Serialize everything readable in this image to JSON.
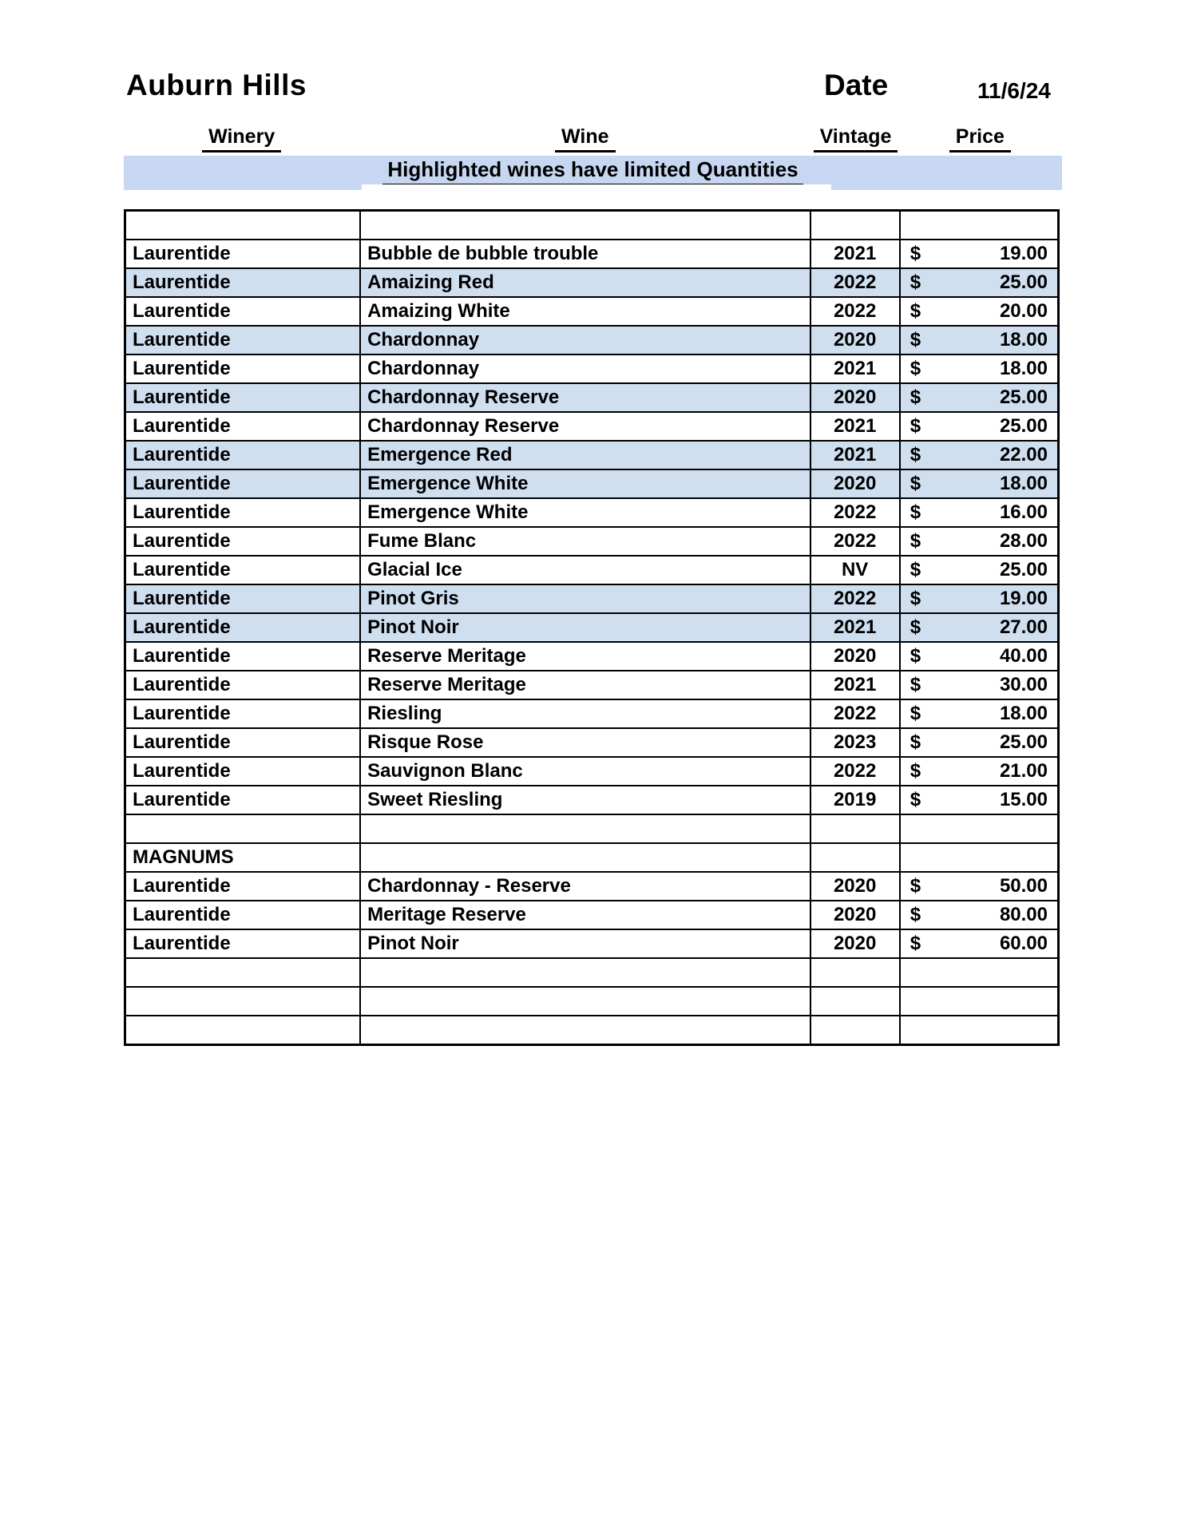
{
  "page": {
    "title": "Auburn Hills",
    "date_label": "Date",
    "date_value": "11/6/24"
  },
  "banner": {
    "text": "Highlighted wines have limited Quantities"
  },
  "colors": {
    "banner_background": "#c7d7f2",
    "row_highlight": "#cfdff0",
    "border": "#000000",
    "text": "#000000"
  },
  "table": {
    "columns": [
      "Winery",
      "Wine",
      "Vintage",
      "Price"
    ],
    "currency_symbol": "$",
    "rows": [
      {
        "winery": "",
        "wine": "",
        "vintage": "",
        "price": "",
        "highlighted": false
      },
      {
        "winery": "Laurentide",
        "wine": "Bubble de bubble trouble",
        "vintage": "2021",
        "price": "19.00",
        "highlighted": false
      },
      {
        "winery": "Laurentide",
        "wine": "Amaizing Red",
        "vintage": "2022",
        "price": "25.00",
        "highlighted": true
      },
      {
        "winery": "Laurentide",
        "wine": "Amaizing White",
        "vintage": "2022",
        "price": "20.00",
        "highlighted": false
      },
      {
        "winery": "Laurentide",
        "wine": "Chardonnay",
        "vintage": "2020",
        "price": "18.00",
        "highlighted": true
      },
      {
        "winery": "Laurentide",
        "wine": "Chardonnay",
        "vintage": "2021",
        "price": "18.00",
        "highlighted": false
      },
      {
        "winery": "Laurentide",
        "wine": "Chardonnay Reserve",
        "vintage": "2020",
        "price": "25.00",
        "highlighted": true
      },
      {
        "winery": "Laurentide",
        "wine": "Chardonnay Reserve",
        "vintage": "2021",
        "price": "25.00",
        "highlighted": false
      },
      {
        "winery": "Laurentide",
        "wine": "Emergence Red",
        "vintage": "2021",
        "price": "22.00",
        "highlighted": true
      },
      {
        "winery": "Laurentide",
        "wine": "Emergence White",
        "vintage": "2020",
        "price": "18.00",
        "highlighted": true
      },
      {
        "winery": "Laurentide",
        "wine": "Emergence White",
        "vintage": "2022",
        "price": "16.00",
        "highlighted": false
      },
      {
        "winery": "Laurentide",
        "wine": "Fume Blanc",
        "vintage": "2022",
        "price": "28.00",
        "highlighted": false
      },
      {
        "winery": "Laurentide",
        "wine": "Glacial Ice",
        "vintage": "NV",
        "price": "25.00",
        "highlighted": false
      },
      {
        "winery": "Laurentide",
        "wine": "Pinot Gris",
        "vintage": "2022",
        "price": "19.00",
        "highlighted": true
      },
      {
        "winery": "Laurentide",
        "wine": "Pinot Noir",
        "vintage": "2021",
        "price": "27.00",
        "highlighted": true
      },
      {
        "winery": "Laurentide",
        "wine": "Reserve Meritage",
        "vintage": "2020",
        "price": "40.00",
        "highlighted": false
      },
      {
        "winery": "Laurentide",
        "wine": "Reserve Meritage",
        "vintage": "2021",
        "price": "30.00",
        "highlighted": false
      },
      {
        "winery": "Laurentide",
        "wine": "Riesling",
        "vintage": "2022",
        "price": "18.00",
        "highlighted": false
      },
      {
        "winery": "Laurentide",
        "wine": "Risque Rose",
        "vintage": "2023",
        "price": "25.00",
        "highlighted": false
      },
      {
        "winery": "Laurentide",
        "wine": "Sauvignon Blanc",
        "vintage": "2022",
        "price": "21.00",
        "highlighted": false
      },
      {
        "winery": "Laurentide",
        "wine": "Sweet Riesling",
        "vintage": "2019",
        "price": "15.00",
        "highlighted": false
      },
      {
        "winery": "",
        "wine": "",
        "vintage": "",
        "price": "",
        "highlighted": false
      },
      {
        "winery": "MAGNUMS",
        "wine": "",
        "vintage": "",
        "price": "",
        "highlighted": false
      },
      {
        "winery": "Laurentide",
        "wine": "Chardonnay - Reserve",
        "vintage": "2020",
        "price": "50.00",
        "highlighted": false
      },
      {
        "winery": "Laurentide",
        "wine": "Meritage Reserve",
        "vintage": "2020",
        "price": "80.00",
        "highlighted": false
      },
      {
        "winery": "Laurentide",
        "wine": "Pinot Noir",
        "vintage": "2020",
        "price": "60.00",
        "highlighted": false
      },
      {
        "winery": "",
        "wine": "",
        "vintage": "",
        "price": "",
        "highlighted": false
      },
      {
        "winery": "",
        "wine": "",
        "vintage": "",
        "price": "",
        "highlighted": false
      },
      {
        "winery": "",
        "wine": "",
        "vintage": "",
        "price": "",
        "highlighted": false
      }
    ]
  }
}
